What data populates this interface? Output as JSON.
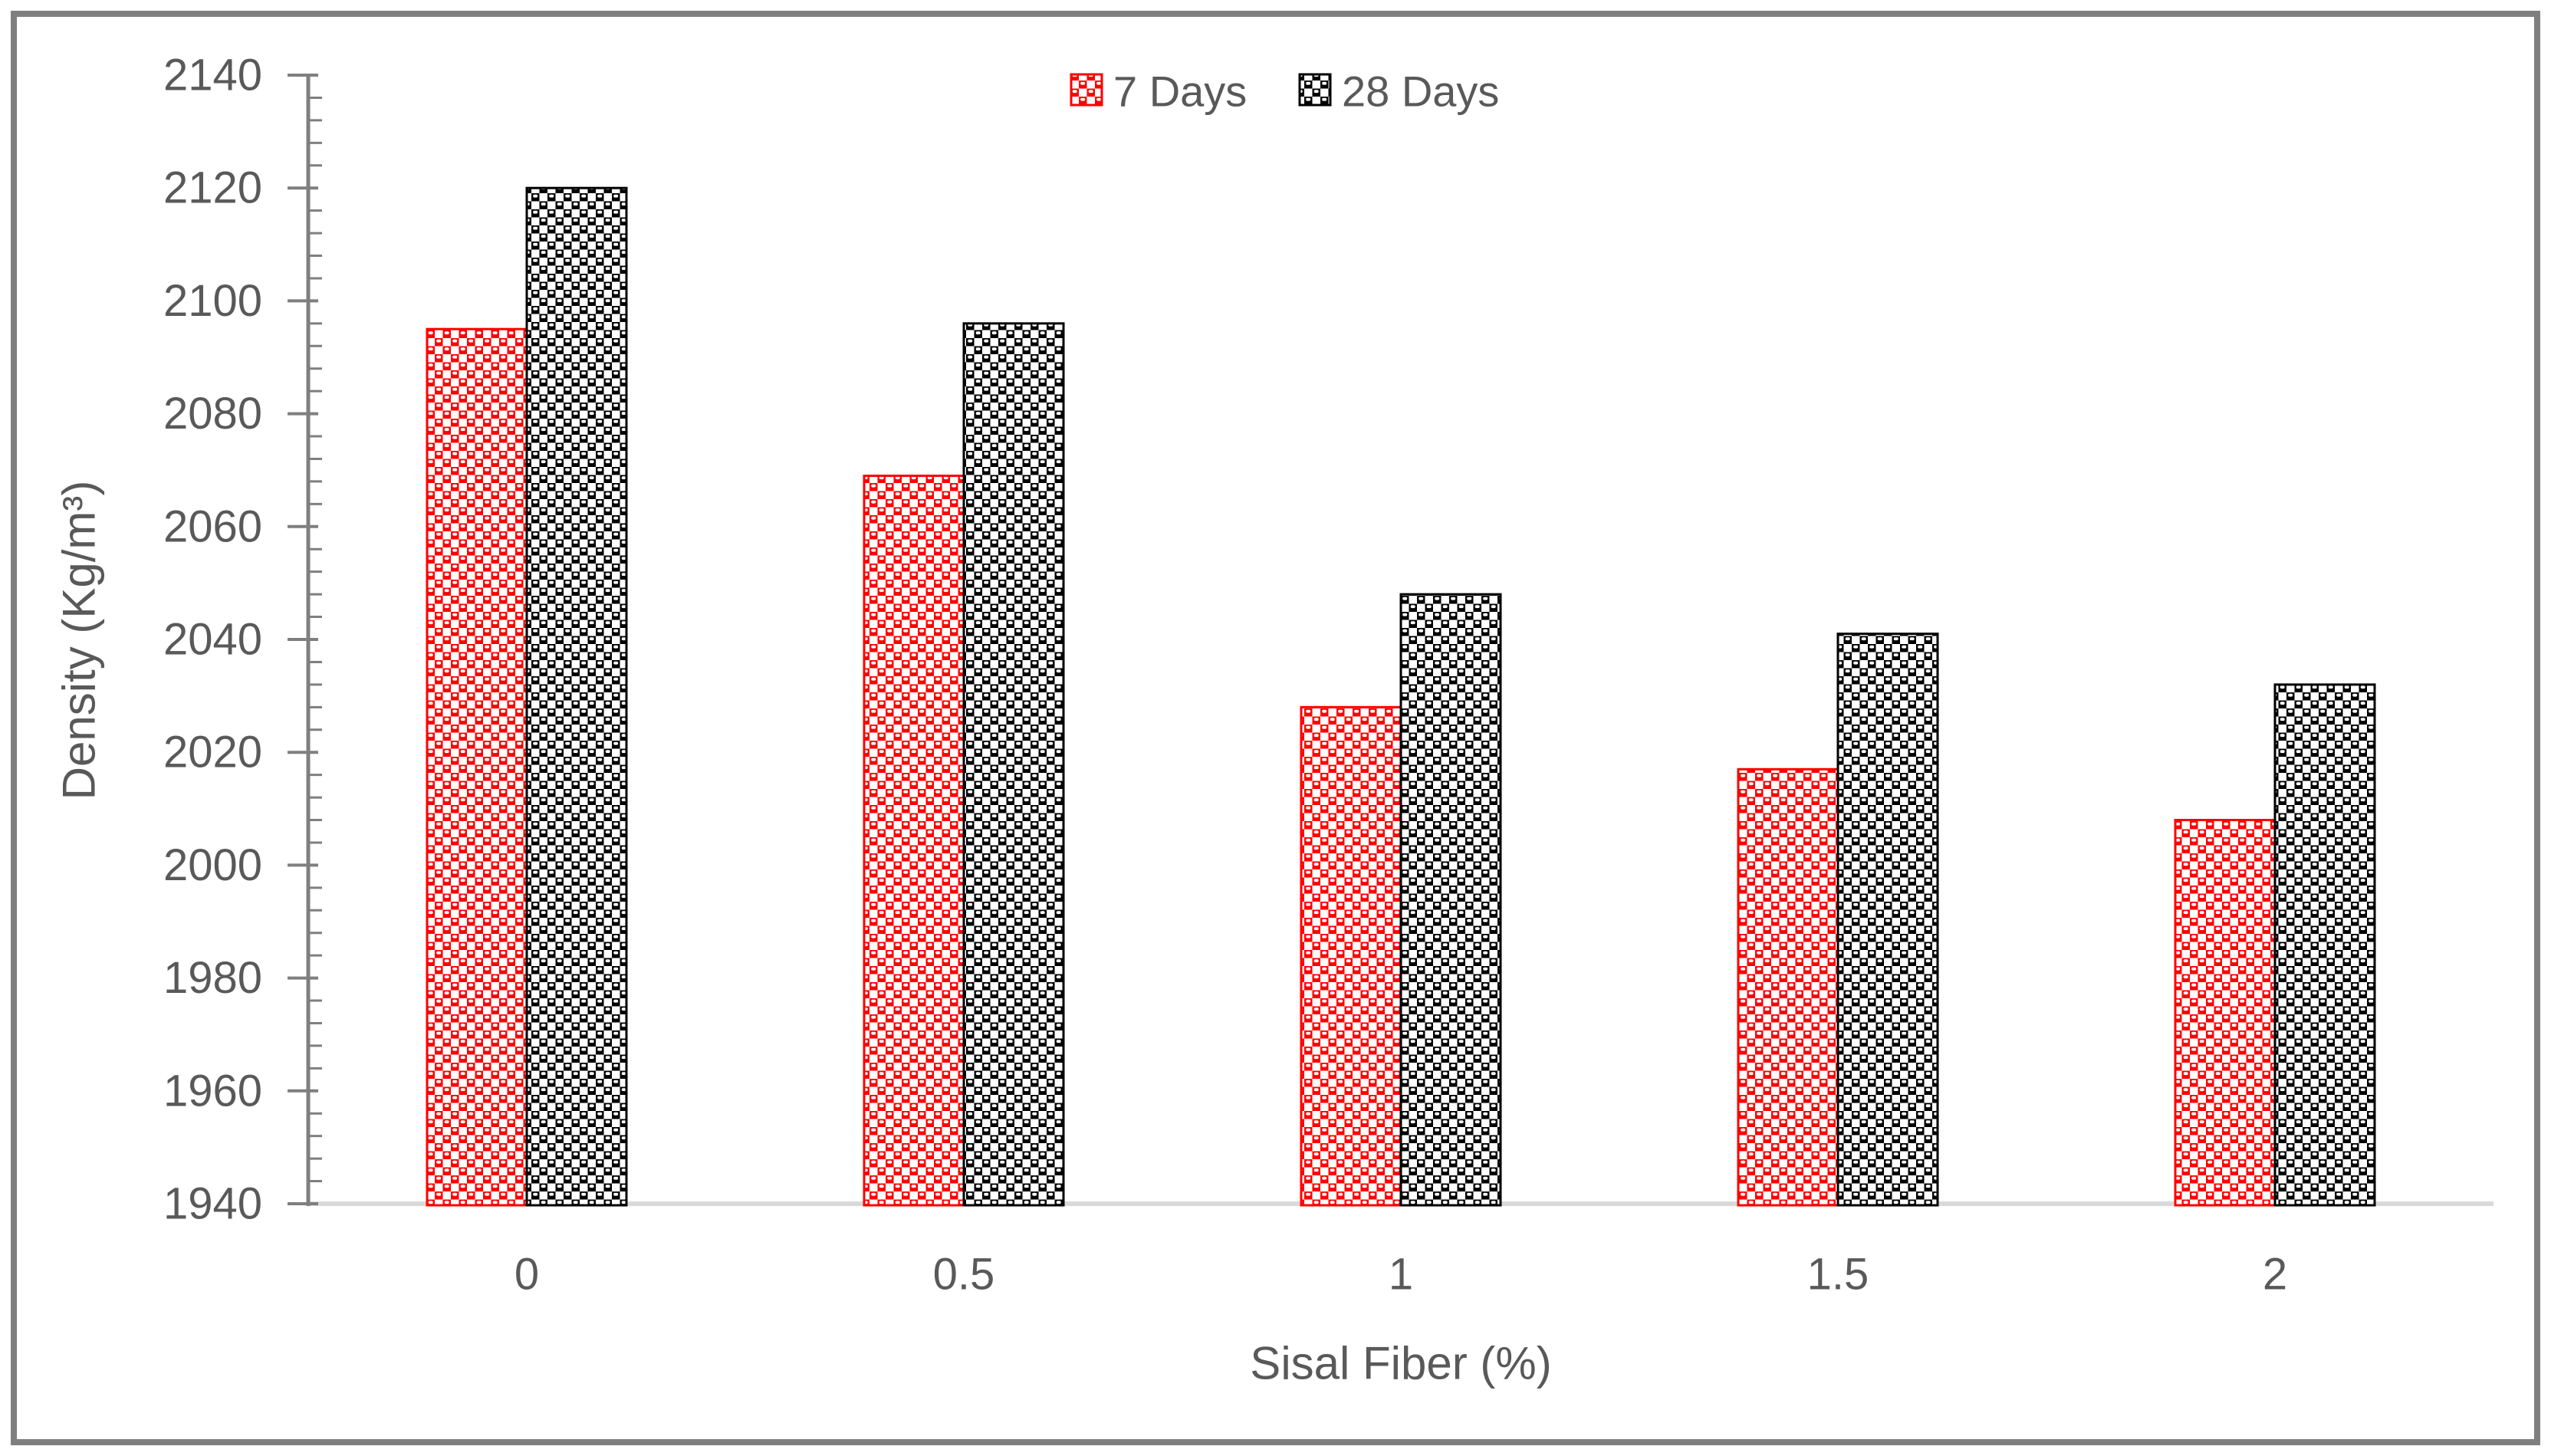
{
  "chart_data": {
    "type": "bar",
    "title": "",
    "xlabel": "Sisal Fiber (%)",
    "ylabel": "Density (Kg/m³)",
    "categories": [
      "0",
      "0.5",
      "1",
      "1.5",
      "2"
    ],
    "series": [
      {
        "name": "7 Days",
        "color": "#ff0000",
        "pattern": "checker-dot",
        "values": [
          2095,
          2069,
          2028,
          2017,
          2008
        ]
      },
      {
        "name": "28 Days",
        "color": "#000000",
        "pattern": "checker-dot",
        "values": [
          2120,
          2096,
          2048,
          2041,
          2032
        ]
      }
    ],
    "ylim": [
      1940,
      2140
    ],
    "y_major_step": 20,
    "y_minor_step": 4,
    "y_tick_labels": [
      "1940",
      "1960",
      "1980",
      "2000",
      "2020",
      "2040",
      "2060",
      "2080",
      "2100",
      "2120",
      "2140"
    ],
    "grid": false,
    "legend_position": "top-center",
    "colors": {
      "axis_text": "#595959",
      "y_axis_line": "#7f7f7f",
      "x_axis_line": "#d9d9d9",
      "frame": "#7f7f7f",
      "background": "#ffffff"
    }
  }
}
